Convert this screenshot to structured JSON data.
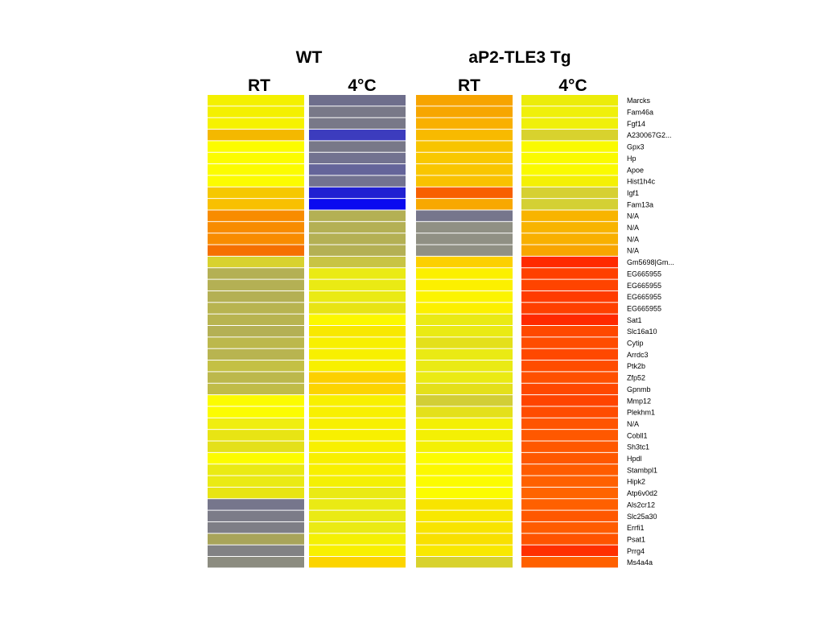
{
  "chart_data": {
    "type": "heatmap",
    "groups": [
      {
        "label": "WT",
        "columns": [
          "RT",
          "4°C"
        ]
      },
      {
        "label": "aP2-TLE3 Tg",
        "columns": [
          "RT",
          "4°C"
        ]
      }
    ],
    "genes": [
      "Marcks",
      "Fam46a",
      "Fgf14",
      "A230067G2...",
      "Gpx3",
      "Hp",
      "Apoe",
      "Hist1h4c",
      "Igf1",
      "Fam13a",
      "N/A",
      "N/A",
      "N/A",
      "N/A",
      "Gm5698|Gm...",
      "EG665955",
      "EG665955",
      "EG665955",
      "EG665955",
      "Sat1",
      "Slc16a10",
      "Cytip",
      "Arrdc3",
      "Ptk2b",
      "Zfp52",
      "Gpnmb",
      "Mmp12",
      "Plekhm1",
      "N/A",
      "Cobll1",
      "Sh3tc1",
      "Hpdl",
      "Stambpl1",
      "Hipk2",
      "Atp6v0d2",
      "Als2cr12",
      "Slc25a30",
      "Errfi1",
      "Psat1",
      "Prrg4",
      "Ms4a4a"
    ],
    "cell_colors": [
      [
        "#f4f000",
        "#6e6e8c",
        "#f7a400",
        "#ecec0a"
      ],
      [
        "#f4f000",
        "#787888",
        "#f7a600",
        "#f0f00a"
      ],
      [
        "#f6f200",
        "#787888",
        "#f9b000",
        "#f0f00a"
      ],
      [
        "#f4b800",
        "#3c3cbe",
        "#f8ba00",
        "#d8d22e"
      ],
      [
        "#fcfc00",
        "#787888",
        "#f8c400",
        "#fafa00"
      ],
      [
        "#fcfc00",
        "#727290",
        "#f9c800",
        "#fafa00"
      ],
      [
        "#fcfc00",
        "#64649a",
        "#f9c600",
        "#fafa00"
      ],
      [
        "#fcfc00",
        "#727290",
        "#f9c200",
        "#f4f004"
      ],
      [
        "#f6c800",
        "#2020d2",
        "#f86000",
        "#d6d032"
      ],
      [
        "#f8c000",
        "#0a0af0",
        "#f8a800",
        "#d4d034"
      ],
      [
        "#f88c00",
        "#b4b054",
        "#76768c",
        "#f8b400"
      ],
      [
        "#f88c00",
        "#b4b054",
        "#909084",
        "#f8b400"
      ],
      [
        "#f88c00",
        "#b4b054",
        "#909084",
        "#f8b000"
      ],
      [
        "#f57000",
        "#b4b054",
        "#909084",
        "#f8a600"
      ],
      [
        "#d8d22e",
        "#c8c444",
        "#fcd000",
        "#ff2a00"
      ],
      [
        "#b4b054",
        "#eaea14",
        "#fcf000",
        "#ff4000"
      ],
      [
        "#b4b054",
        "#eaea14",
        "#fcf000",
        "#ff4400"
      ],
      [
        "#b4b054",
        "#eaea14",
        "#fcf400",
        "#ff3c00"
      ],
      [
        "#b8b450",
        "#e8e414",
        "#fcf000",
        "#ff4000"
      ],
      [
        "#b8b450",
        "#fcf800",
        "#eaea14",
        "#ff2a00"
      ],
      [
        "#b4b054",
        "#f8e800",
        "#eaea14",
        "#ff4800"
      ],
      [
        "#bcb84c",
        "#f8f000",
        "#e4e01a",
        "#ff4c00"
      ],
      [
        "#b8b450",
        "#f8f000",
        "#eaea14",
        "#ff4800"
      ],
      [
        "#c4c044",
        "#f8f000",
        "#eaea14",
        "#ff4c00"
      ],
      [
        "#bcb84c",
        "#fcd000",
        "#eaea14",
        "#ff5000"
      ],
      [
        "#c0bc48",
        "#fcd400",
        "#e4e01a",
        "#ff4800"
      ],
      [
        "#fcfc00",
        "#f8f000",
        "#d2ce36",
        "#ff4400"
      ],
      [
        "#fcfc00",
        "#f8f000",
        "#e4e01a",
        "#ff4c00"
      ],
      [
        "#f0ee10",
        "#f8f000",
        "#f4f004",
        "#ff5400"
      ],
      [
        "#e8e414",
        "#f8f000",
        "#f4f004",
        "#ff5800"
      ],
      [
        "#e4e01a",
        "#f8f000",
        "#f4f004",
        "#ff5800"
      ],
      [
        "#fcfc00",
        "#f8f000",
        "#fcfc00",
        "#ff5800"
      ],
      [
        "#eaea14",
        "#f8f000",
        "#fcf800",
        "#ff5c00"
      ],
      [
        "#eaea14",
        "#f4f004",
        "#fcfc00",
        "#ff6000"
      ],
      [
        "#e8e414",
        "#eaea14",
        "#fcfc00",
        "#ff6400"
      ],
      [
        "#76768c",
        "#eaea14",
        "#f8e400",
        "#ff6000"
      ],
      [
        "#7c7c88",
        "#eaea14",
        "#f8e800",
        "#ff5800"
      ],
      [
        "#7e7e86",
        "#eaea14",
        "#f8e400",
        "#ff5c00"
      ],
      [
        "#a8a45a",
        "#f4f004",
        "#f8e000",
        "#ff5400"
      ],
      [
        "#828284",
        "#f8f000",
        "#f8e800",
        "#ff3000"
      ],
      [
        "#8c8c80",
        "#fcd400",
        "#d8d22e",
        "#ff6000"
      ]
    ]
  }
}
